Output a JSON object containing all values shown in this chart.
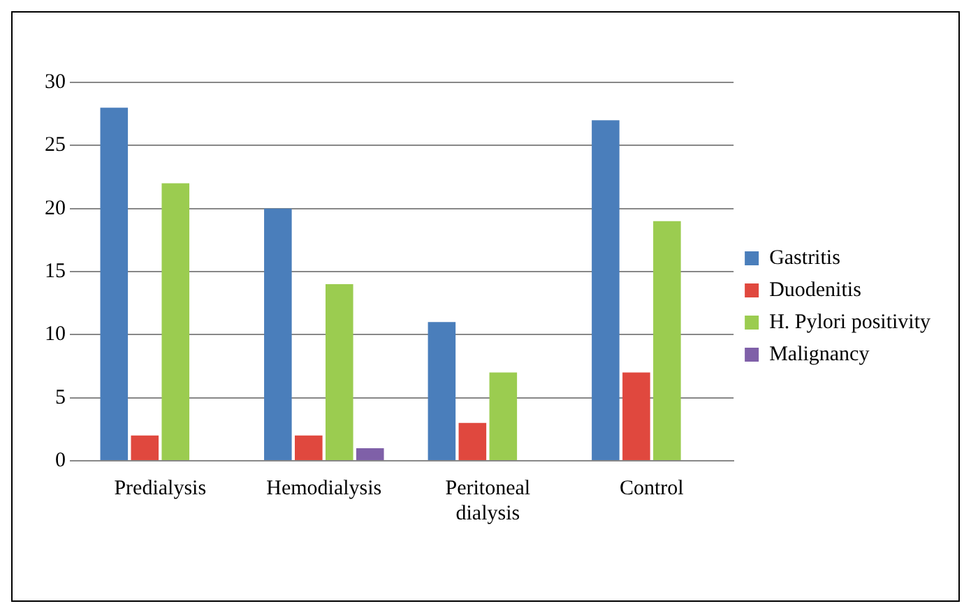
{
  "chart_data": {
    "type": "bar",
    "categories": [
      "Predialysis",
      "Hemodialysis",
      "Peritoneal dialysis",
      "Control"
    ],
    "series": [
      {
        "name": "Gastritis",
        "color": "#4a7ebb",
        "values": [
          28,
          20,
          11,
          27
        ]
      },
      {
        "name": "Duodenitis",
        "color": "#e0483e",
        "values": [
          2,
          2,
          3,
          7
        ]
      },
      {
        "name": "H. Pylori positivity",
        "color": "#9bcc50",
        "values": [
          22,
          14,
          7,
          19
        ]
      },
      {
        "name": "Malignancy",
        "color": "#7f60a8",
        "values": [
          0,
          1,
          0,
          0
        ]
      }
    ],
    "ylim": [
      0,
      30
    ],
    "yticks": [
      0,
      5,
      10,
      15,
      20,
      25,
      30
    ],
    "grid": "y",
    "legend": "right"
  }
}
